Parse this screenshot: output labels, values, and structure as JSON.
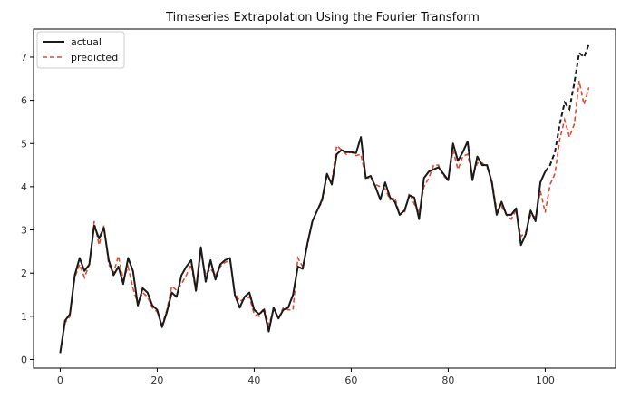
{
  "chart_data": {
    "type": "line",
    "title": "Timeseries Extrapolation Using the Fourier Transform",
    "xlabel": "",
    "ylabel": "",
    "xlim": [
      -5.5,
      114.5
    ],
    "ylim": [
      -0.2,
      7.65
    ],
    "x_ticks": [
      0,
      20,
      40,
      60,
      80,
      100
    ],
    "y_ticks": [
      0,
      1,
      2,
      3,
      4,
      5,
      6,
      7
    ],
    "grid": false,
    "legend_position": "top-left",
    "series": [
      {
        "name": "actual",
        "color": "#1a1a1a",
        "style": "solid",
        "dashed_from_x": 100,
        "x": [
          0,
          1,
          2,
          3,
          4,
          5,
          6,
          7,
          8,
          9,
          10,
          11,
          12,
          13,
          14,
          15,
          16,
          17,
          18,
          19,
          20,
          21,
          22,
          23,
          24,
          25,
          26,
          27,
          28,
          29,
          30,
          31,
          32,
          33,
          34,
          35,
          36,
          37,
          38,
          39,
          40,
          41,
          42,
          43,
          44,
          45,
          46,
          47,
          48,
          49,
          50,
          51,
          52,
          53,
          54,
          55,
          56,
          57,
          58,
          59,
          60,
          61,
          62,
          63,
          64,
          65,
          66,
          67,
          68,
          69,
          70,
          71,
          72,
          73,
          74,
          75,
          76,
          77,
          78,
          79,
          80,
          81,
          82,
          83,
          84,
          85,
          86,
          87,
          88,
          89,
          90,
          91,
          92,
          93,
          94,
          95,
          96,
          97,
          98,
          99,
          100,
          101,
          102,
          103,
          104,
          105,
          106,
          107,
          108,
          109
        ],
        "y": [
          0.15,
          0.9,
          1.05,
          1.95,
          2.35,
          2.05,
          2.2,
          3.1,
          2.8,
          3.05,
          2.3,
          1.95,
          2.15,
          1.75,
          2.35,
          2.05,
          1.25,
          1.65,
          1.55,
          1.25,
          1.15,
          0.75,
          1.1,
          1.55,
          1.45,
          1.95,
          2.15,
          2.3,
          1.6,
          2.6,
          1.8,
          2.3,
          1.85,
          2.2,
          2.3,
          2.35,
          1.5,
          1.2,
          1.45,
          1.55,
          1.15,
          1.05,
          1.15,
          0.65,
          1.2,
          0.95,
          1.15,
          1.2,
          1.5,
          2.15,
          2.1,
          2.7,
          3.2,
          3.45,
          3.7,
          4.3,
          4.05,
          4.75,
          4.85,
          4.8,
          4.8,
          4.78,
          5.15,
          4.2,
          4.25,
          4.0,
          3.7,
          4.1,
          3.75,
          3.65,
          3.35,
          3.45,
          3.8,
          3.75,
          3.25,
          4.2,
          4.35,
          4.4,
          4.45,
          4.3,
          4.15,
          5.0,
          4.6,
          4.8,
          5.05,
          4.15,
          4.7,
          4.5,
          4.5,
          4.1,
          3.35,
          3.65,
          3.35,
          3.35,
          3.5,
          2.65,
          2.9,
          3.45,
          3.2,
          4.1,
          4.35,
          4.5,
          4.8,
          5.45,
          5.95,
          5.8,
          6.4,
          7.1,
          7.0,
          7.3
        ]
      },
      {
        "name": "predicted",
        "color": "#e24a33",
        "style": "dashed",
        "x": [
          0,
          1,
          2,
          3,
          4,
          5,
          6,
          7,
          8,
          9,
          10,
          11,
          12,
          13,
          14,
          15,
          16,
          17,
          18,
          19,
          20,
          21,
          22,
          23,
          24,
          25,
          26,
          27,
          28,
          29,
          30,
          31,
          32,
          33,
          34,
          35,
          36,
          37,
          38,
          39,
          40,
          41,
          42,
          43,
          44,
          45,
          46,
          47,
          48,
          49,
          50,
          51,
          52,
          53,
          54,
          55,
          56,
          57,
          58,
          59,
          60,
          61,
          62,
          63,
          64,
          65,
          66,
          67,
          68,
          69,
          70,
          71,
          72,
          73,
          74,
          75,
          76,
          77,
          78,
          79,
          80,
          81,
          82,
          83,
          84,
          85,
          86,
          87,
          88,
          89,
          90,
          91,
          92,
          93,
          94,
          95,
          96,
          97,
          98,
          99,
          100,
          101,
          102,
          103,
          104,
          105,
          106,
          107,
          108,
          109
        ],
        "y": [
          0.15,
          0.85,
          1.0,
          1.9,
          2.2,
          1.9,
          2.2,
          3.2,
          2.65,
          3.1,
          2.2,
          2.0,
          2.4,
          1.85,
          2.15,
          1.65,
          1.3,
          1.55,
          1.45,
          1.2,
          1.1,
          0.8,
          1.15,
          1.7,
          1.6,
          1.75,
          1.95,
          2.2,
          1.55,
          2.5,
          1.95,
          2.1,
          1.95,
          2.15,
          2.25,
          2.3,
          1.55,
          1.35,
          1.4,
          1.45,
          1.05,
          1.0,
          1.2,
          0.8,
          1.15,
          0.95,
          1.2,
          1.15,
          1.15,
          2.35,
          2.15,
          2.65,
          3.2,
          3.45,
          3.65,
          4.25,
          4.1,
          4.95,
          4.85,
          4.75,
          4.8,
          4.72,
          4.75,
          4.2,
          4.2,
          4.05,
          4.0,
          3.95,
          3.7,
          3.75,
          3.35,
          3.4,
          3.85,
          3.6,
          3.4,
          4.0,
          4.2,
          4.5,
          4.5,
          4.25,
          4.15,
          4.85,
          4.4,
          4.7,
          4.75,
          4.25,
          4.55,
          4.55,
          4.45,
          4.15,
          3.45,
          3.55,
          3.35,
          3.25,
          3.45,
          2.85,
          2.95,
          3.35,
          3.3,
          3.9,
          3.4,
          4.05,
          4.3,
          5.1,
          5.55,
          5.15,
          5.45,
          6.45,
          5.9,
          6.3
        ]
      }
    ]
  }
}
